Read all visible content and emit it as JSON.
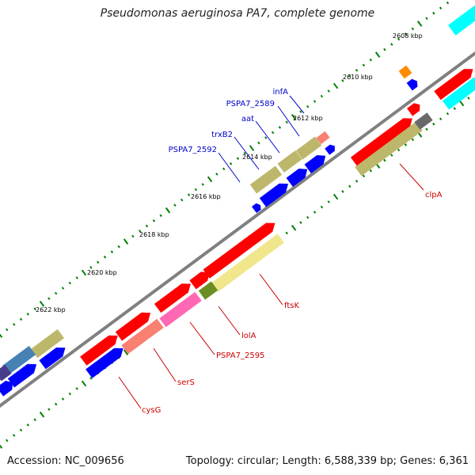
{
  "title": "Pseudomonas aeruginosa PA7, complete genome",
  "footer": {
    "accession": "Accession: NC_009656",
    "summary": "Topology: circular; Length: 6,588,339 bp; Genes: 6,361"
  },
  "scale_labels": [
    "2608 kbp",
    "2610 kbp",
    "2612 kbp",
    "2614 kbp",
    "2616 kbp",
    "2618 kbp",
    "2620 kbp",
    "2622 kbp"
  ],
  "gene_labels_top": [
    "infA",
    "PSPA7_2589",
    "aat",
    "trxB2",
    "PSPA7_2592"
  ],
  "gene_labels_bottom": [
    "clpA",
    "ftsK",
    "lolA",
    "PSPA7_2595",
    "serS",
    "cysG"
  ],
  "colors": {
    "backbone": "#808080",
    "cds_forward": "#ff0000",
    "cds_reverse": "#0000ff",
    "cog_khaki": "#bdb76b",
    "cog_pale_yellow": "#f0e68c",
    "cog_cyan": "#00ffff",
    "cog_pink": "#ff69b4",
    "cog_salmon": "#fa8072",
    "cog_olive": "#6b8e23",
    "cog_orange": "#ff8c00",
    "cog_gray": "#696969",
    "cog_steelblue": "#4682b4",
    "cog_slateblue": "#483d8b",
    "label_top": "#0000cc",
    "label_bottom": "#cc0000",
    "tick": "#008000"
  }
}
